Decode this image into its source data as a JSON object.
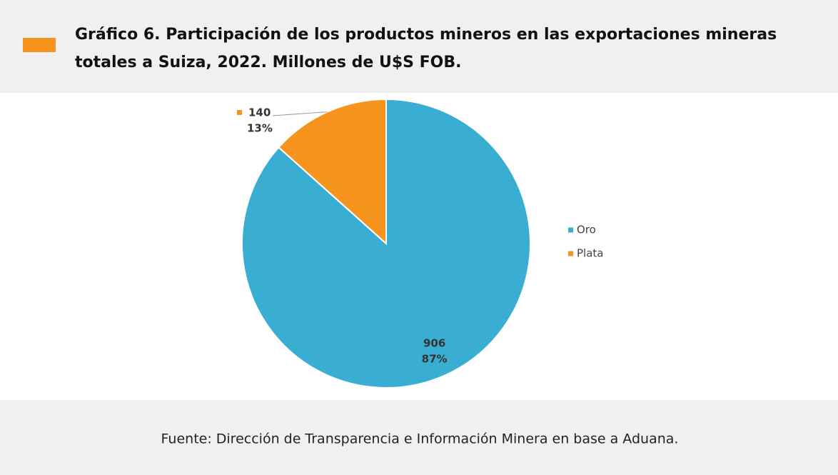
{
  "chart_data": {
    "type": "pie",
    "title": [
      "Gráfico 6. Participación de los productos mineros en las exportaciones mineras",
      "totales a Suiza, 2022. Millones de U$S FOB."
    ],
    "categories": [
      "Oro",
      "Plata"
    ],
    "values": [
      906,
      140
    ],
    "percent_labels": [
      "87%",
      "13%"
    ],
    "colors": [
      "#3aadd3",
      "#f7941d"
    ],
    "legend": "right",
    "source": "Fuente: Dirección de Transparencia e Información Minera en base a Aduana."
  }
}
